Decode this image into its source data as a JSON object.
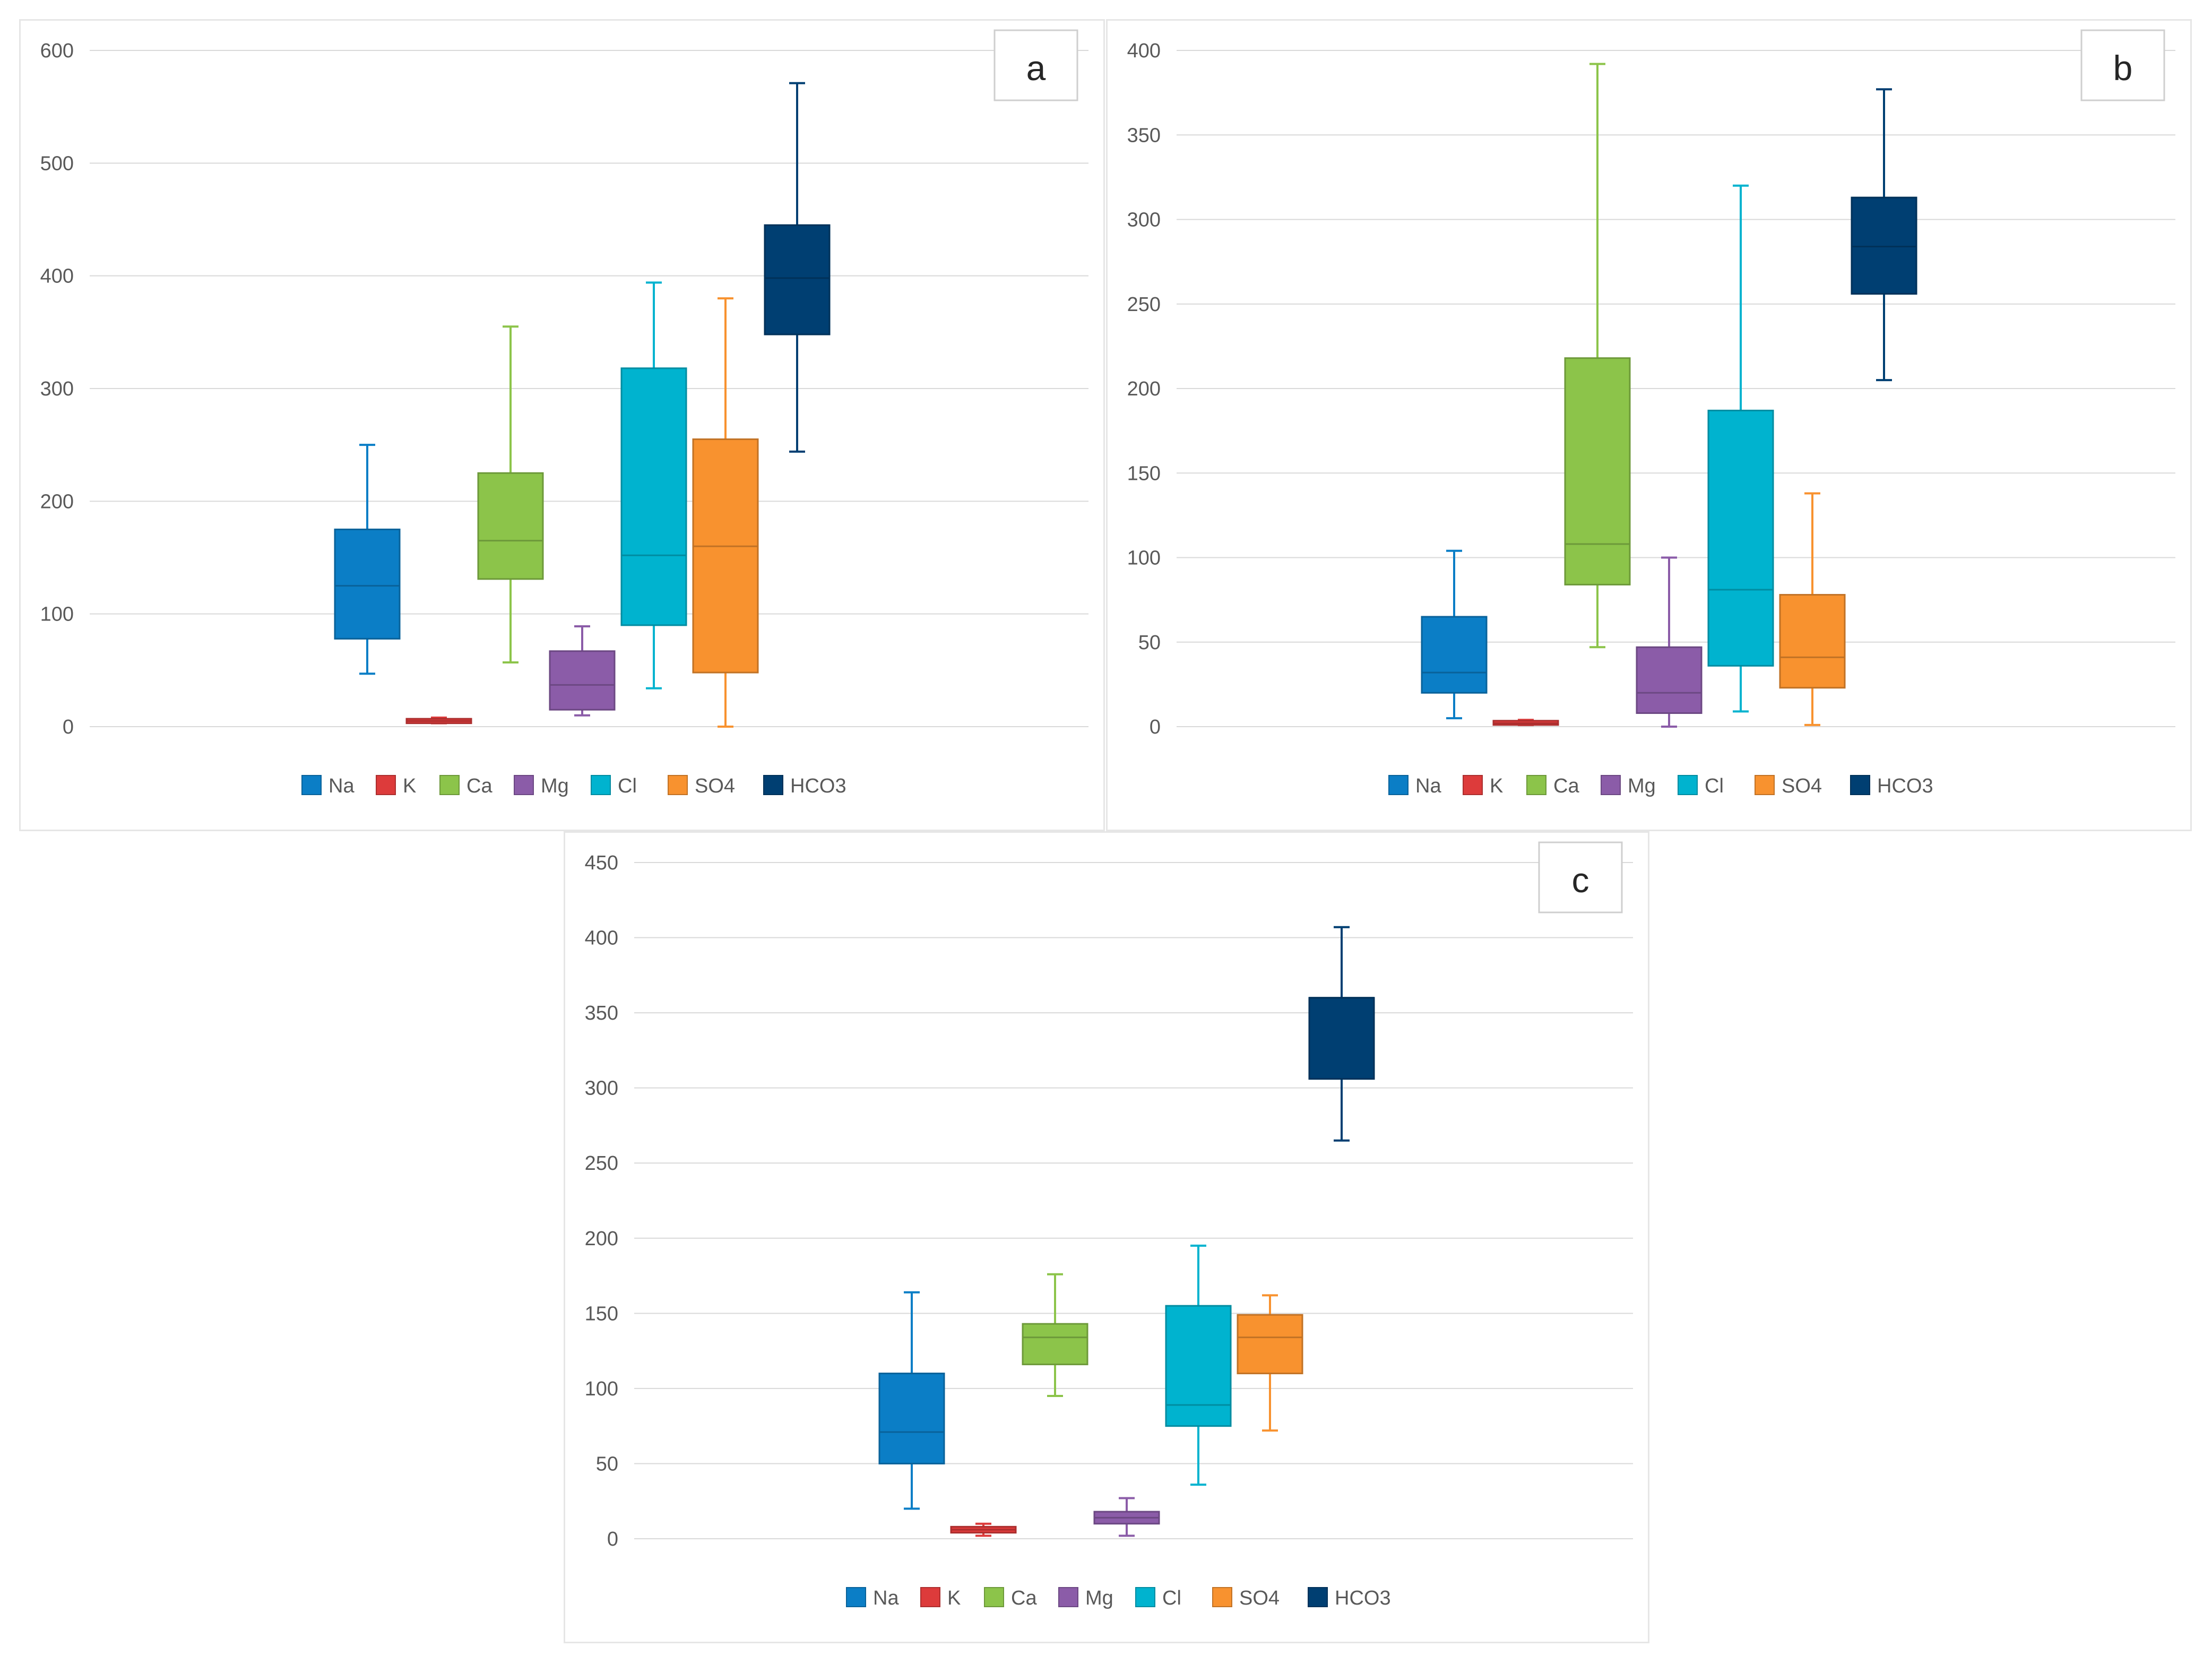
{
  "legend_labels": [
    "Na",
    "K",
    "Ca",
    "Mg",
    "Cl",
    "SO4",
    "HCO3"
  ],
  "colors": {
    "Na": "#0b7ec6",
    "K": "#dd3b3b",
    "Ca": "#8cc44a",
    "Mg": "#8b5ca8",
    "Cl": "#00b3cf",
    "SO4": "#f8922f",
    "HCO3": "#003f72",
    "grid": "#d9d9d9",
    "axis_text": "#595959"
  },
  "chart_data": [
    {
      "type": "boxplot",
      "panel_label": "a",
      "ylim": [
        0,
        600
      ],
      "yticks": [
        0,
        100,
        200,
        300,
        400,
        500,
        600
      ],
      "series": [
        {
          "name": "Na",
          "min": 47,
          "q1": 78,
          "median": 125,
          "q3": 175,
          "max": 250
        },
        {
          "name": "K",
          "min": 3,
          "q1": 3,
          "median": 5,
          "q3": 7,
          "max": 8
        },
        {
          "name": "Ca",
          "min": 57,
          "q1": 131,
          "median": 165,
          "q3": 225,
          "max": 355
        },
        {
          "name": "Mg",
          "min": 10,
          "q1": 15,
          "median": 37,
          "q3": 67,
          "max": 89
        },
        {
          "name": "Cl",
          "min": 34,
          "q1": 90,
          "median": 152,
          "q3": 318,
          "max": 394
        },
        {
          "name": "SO4",
          "min": 0,
          "q1": 48,
          "median": 160,
          "q3": 255,
          "max": 380
        },
        {
          "name": "HCO3",
          "min": 244,
          "q1": 348,
          "median": 398,
          "q3": 445,
          "max": 571
        }
      ]
    },
    {
      "type": "boxplot",
      "panel_label": "b",
      "ylim": [
        0,
        400
      ],
      "yticks": [
        0,
        50,
        100,
        150,
        200,
        250,
        300,
        350,
        400
      ],
      "series": [
        {
          "name": "Na",
          "min": 5,
          "q1": 20,
          "median": 32,
          "q3": 65,
          "max": 104
        },
        {
          "name": "K",
          "min": 1,
          "q1": 1,
          "median": 2,
          "q3": 3,
          "max": 4
        },
        {
          "name": "Ca",
          "min": 47,
          "q1": 84,
          "median": 108,
          "q3": 218,
          "max": 392
        },
        {
          "name": "Mg",
          "min": 0,
          "q1": 8,
          "median": 20,
          "q3": 47,
          "max": 100
        },
        {
          "name": "Cl",
          "min": 9,
          "q1": 36,
          "median": 81,
          "q3": 187,
          "max": 320
        },
        {
          "name": "SO4",
          "min": 1,
          "q1": 23,
          "median": 41,
          "q3": 78,
          "max": 138
        },
        {
          "name": "HCO3",
          "min": 205,
          "q1": 256,
          "median": 284,
          "q3": 313,
          "max": 377
        }
      ]
    },
    {
      "type": "boxplot",
      "panel_label": "c",
      "ylim": [
        0,
        450
      ],
      "yticks": [
        0,
        50,
        100,
        150,
        200,
        250,
        300,
        350,
        400,
        450
      ],
      "series": [
        {
          "name": "Na",
          "min": 20,
          "q1": 50,
          "median": 71,
          "q3": 110,
          "max": 164
        },
        {
          "name": "K",
          "min": 2,
          "q1": 4,
          "median": 6,
          "q3": 8,
          "max": 10
        },
        {
          "name": "Ca",
          "min": 95,
          "q1": 116,
          "median": 134,
          "q3": 143,
          "max": 176
        },
        {
          "name": "Mg",
          "min": 2,
          "q1": 10,
          "median": 14,
          "q3": 18,
          "max": 27
        },
        {
          "name": "Cl",
          "min": 36,
          "q1": 75,
          "median": 89,
          "q3": 155,
          "max": 195
        },
        {
          "name": "SO4",
          "min": 72,
          "q1": 110,
          "median": 134,
          "q3": 149,
          "max": 162
        },
        {
          "name": "HCO3",
          "min": 265,
          "q1": 306,
          "median": 360,
          "q3": 360,
          "max": 407
        }
      ]
    }
  ]
}
